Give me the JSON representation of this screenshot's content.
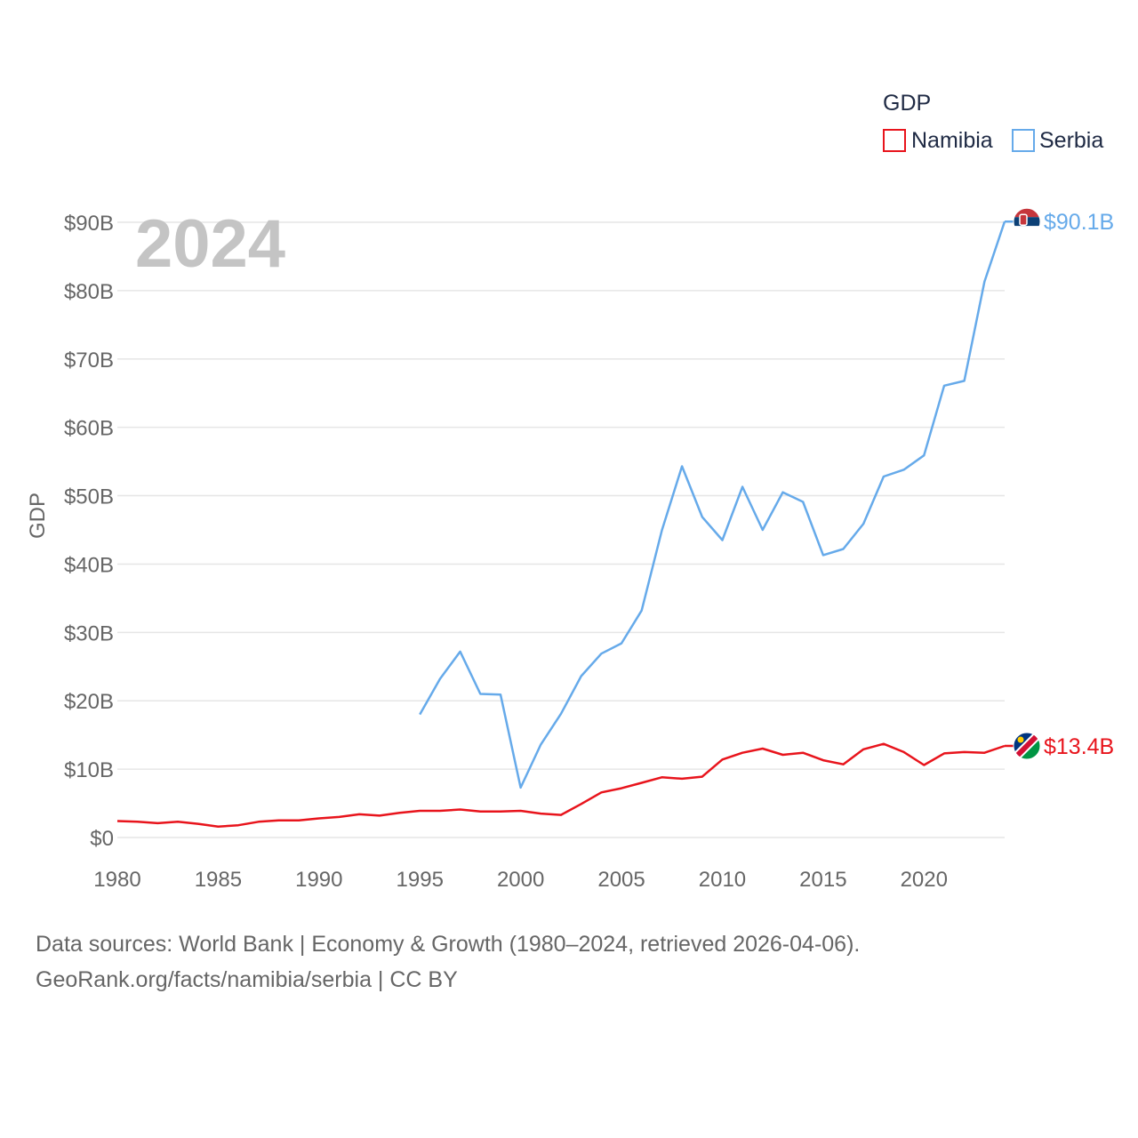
{
  "chart_data": {
    "type": "line",
    "year_display": "2024",
    "ylabel": "GDP",
    "legend_title": "GDP",
    "ylim": [
      0,
      90000000000
    ],
    "xlim": [
      1980,
      2024
    ],
    "x_ticks": [
      1980,
      1985,
      1990,
      1995,
      2000,
      2005,
      2010,
      2015,
      2020
    ],
    "x_tick_labels": [
      "1980",
      "1985",
      "1990",
      "1995",
      "2000",
      "2005",
      "2010",
      "2015",
      "2020"
    ],
    "y_ticks": [
      0,
      10000000000,
      20000000000,
      30000000000,
      40000000000,
      50000000000,
      60000000000,
      70000000000,
      80000000000,
      90000000000
    ],
    "y_tick_labels": [
      "$0",
      "$10B",
      "$20B",
      "$30B",
      "$40B",
      "$50B",
      "$60B",
      "$70B",
      "$80B",
      "$90B"
    ],
    "series": [
      {
        "name": "Namibia",
        "color": "#e8141c",
        "flag": "namibia-flag-icon",
        "end_label": "$13.4B",
        "x": [
          1980,
          1981,
          1982,
          1983,
          1984,
          1985,
          1986,
          1987,
          1988,
          1989,
          1990,
          1991,
          1992,
          1993,
          1994,
          1995,
          1996,
          1997,
          1998,
          1999,
          2000,
          2001,
          2002,
          2003,
          2004,
          2005,
          2006,
          2007,
          2008,
          2009,
          2010,
          2011,
          2012,
          2013,
          2014,
          2015,
          2016,
          2017,
          2018,
          2019,
          2020,
          2021,
          2022,
          2023,
          2024
        ],
        "values": [
          2.4,
          2.3,
          2.1,
          2.3,
          2.0,
          1.6,
          1.8,
          2.3,
          2.5,
          2.5,
          2.8,
          3.0,
          3.4,
          3.2,
          3.6,
          3.9,
          3.9,
          4.1,
          3.8,
          3.8,
          3.9,
          3.5,
          3.3,
          4.9,
          6.6,
          7.2,
          8.0,
          8.8,
          8.6,
          8.9,
          11.4,
          12.4,
          13.0,
          12.1,
          12.4,
          11.3,
          10.7,
          12.9,
          13.7,
          12.5,
          10.6,
          12.3,
          12.5,
          12.4,
          13.4
        ]
      },
      {
        "name": "Serbia",
        "color": "#66aaea",
        "flag": "serbia-flag-icon",
        "end_label": "$90.1B",
        "x": [
          1995,
          1996,
          1997,
          1998,
          1999,
          2000,
          2001,
          2002,
          2003,
          2004,
          2005,
          2006,
          2007,
          2008,
          2009,
          2010,
          2011,
          2012,
          2013,
          2014,
          2015,
          2016,
          2017,
          2018,
          2019,
          2020,
          2021,
          2022,
          2023,
          2024
        ],
        "values": [
          18.0,
          23.2,
          27.2,
          21.0,
          20.9,
          7.3,
          13.6,
          18.1,
          23.6,
          26.9,
          28.4,
          33.2,
          44.9,
          54.3,
          46.9,
          43.5,
          51.3,
          45.0,
          50.5,
          49.1,
          41.3,
          42.2,
          45.9,
          52.8,
          53.8,
          55.9,
          66.1,
          66.8,
          81.3,
          90.1
        ]
      }
    ]
  },
  "footer": {
    "source_line": "Data sources: World Bank | Economy & Growth (1980–2024, retrieved 2026-04-06).",
    "credit_line": "GeoRank.org/facts/namibia/serbia | CC BY"
  }
}
